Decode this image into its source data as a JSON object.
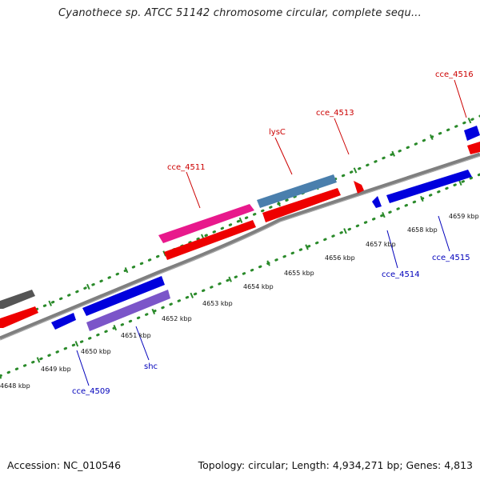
{
  "title": "Cyanothece sp. ATCC 51142 chromosome circular, complete sequ...",
  "footer": {
    "accession": "Accession: NC_010546",
    "topology": "Topology: circular; Length: 4,934,271 bp; Genes: 4,813"
  },
  "colors": {
    "backbone": "#808080",
    "ticks": "#2a8a2a",
    "plus_label": "#cc0000",
    "minus_label": "#0000bb"
  },
  "tick_labels": [
    "4648 kbp",
    "4649 kbp",
    "4650 kbp",
    "4651 kbp",
    "4652 kbp",
    "4653 kbp",
    "4654 kbp",
    "4655 kbp",
    "4656 kbp",
    "4657 kbp",
    "4658 kbp",
    "4659 kbp"
  ],
  "gene_labels": {
    "cce_4516": "cce_4516",
    "cce_4513": "cce_4513",
    "lysC": "lysC",
    "cce_4511": "cce_4511",
    "cce_4514": "cce_4514",
    "cce_4515": "cce_4515",
    "shc": "shc",
    "cce_4509": "cce_4509"
  }
}
